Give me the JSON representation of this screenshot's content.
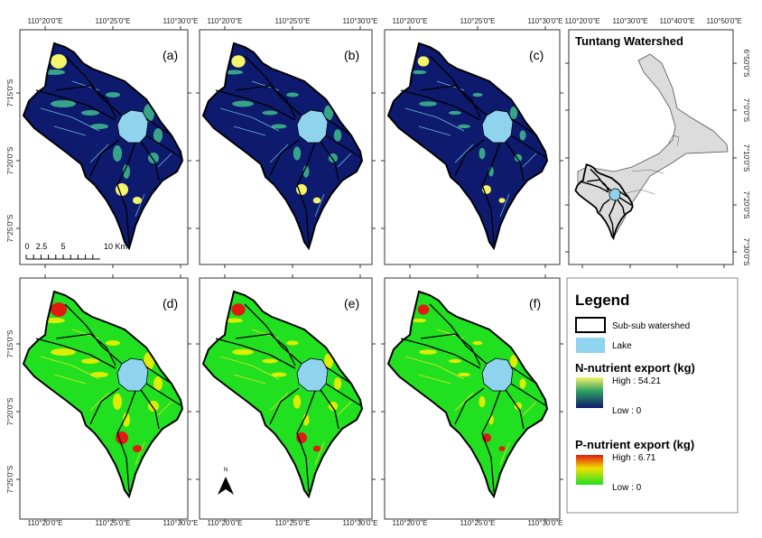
{
  "panels": [
    {
      "label": "(a)",
      "variable": "N",
      "row": 0,
      "col": 0
    },
    {
      "label": "(b)",
      "variable": "N",
      "row": 0,
      "col": 1
    },
    {
      "label": "(c)",
      "variable": "N",
      "row": 0,
      "col": 2
    },
    {
      "label": "(d)",
      "variable": "P",
      "row": 1,
      "col": 0
    },
    {
      "label": "(e)",
      "variable": "P",
      "row": 1,
      "col": 1
    },
    {
      "label": "(f)",
      "variable": "P",
      "row": 1,
      "col": 2
    }
  ],
  "axes": {
    "longitude_labels": [
      "110°20'0\"E",
      "110°25'0\"E",
      "110°30'0\"E"
    ],
    "latitude_labels": [
      "7°15'0\"S",
      "7°20'0\"S",
      "7°25'0\"S"
    ]
  },
  "scale_bar": {
    "labels": [
      "0",
      "2.5",
      "5",
      "10 Km"
    ]
  },
  "north_arrow": {
    "label": "N"
  },
  "inset": {
    "title": "Tuntang Watershed",
    "longitude_labels": [
      "110°20'0\"E",
      "110°30'0\"E",
      "110°40'0\"E",
      "110°50'0\"E"
    ],
    "latitude_labels": [
      "6°50'0\"S",
      "7°0'0\"S",
      "7°10'0\"S",
      "7°20'0\"S",
      "7°30'0\"S"
    ]
  },
  "legend": {
    "title": "Legend",
    "watershed_label": "Sub-sub watershed",
    "lake_label": "Lake",
    "n_title": "N-nutrient export (kg)",
    "n_high": "High : 54.21",
    "n_low": "Low : 0",
    "p_title": "P-nutrient export (kg)",
    "p_high": "High : 6.71",
    "p_low": "Low : 0"
  },
  "colors": {
    "n_low": "#0d1a6e",
    "n_mid": "#2fa060",
    "n_high": "#f5f56a",
    "p_low": "#20e020",
    "p_mid": "#f0f000",
    "p_high": "#e01a10",
    "lake": "#8fd3ef",
    "watershed_fill": "#dcdcdc"
  }
}
